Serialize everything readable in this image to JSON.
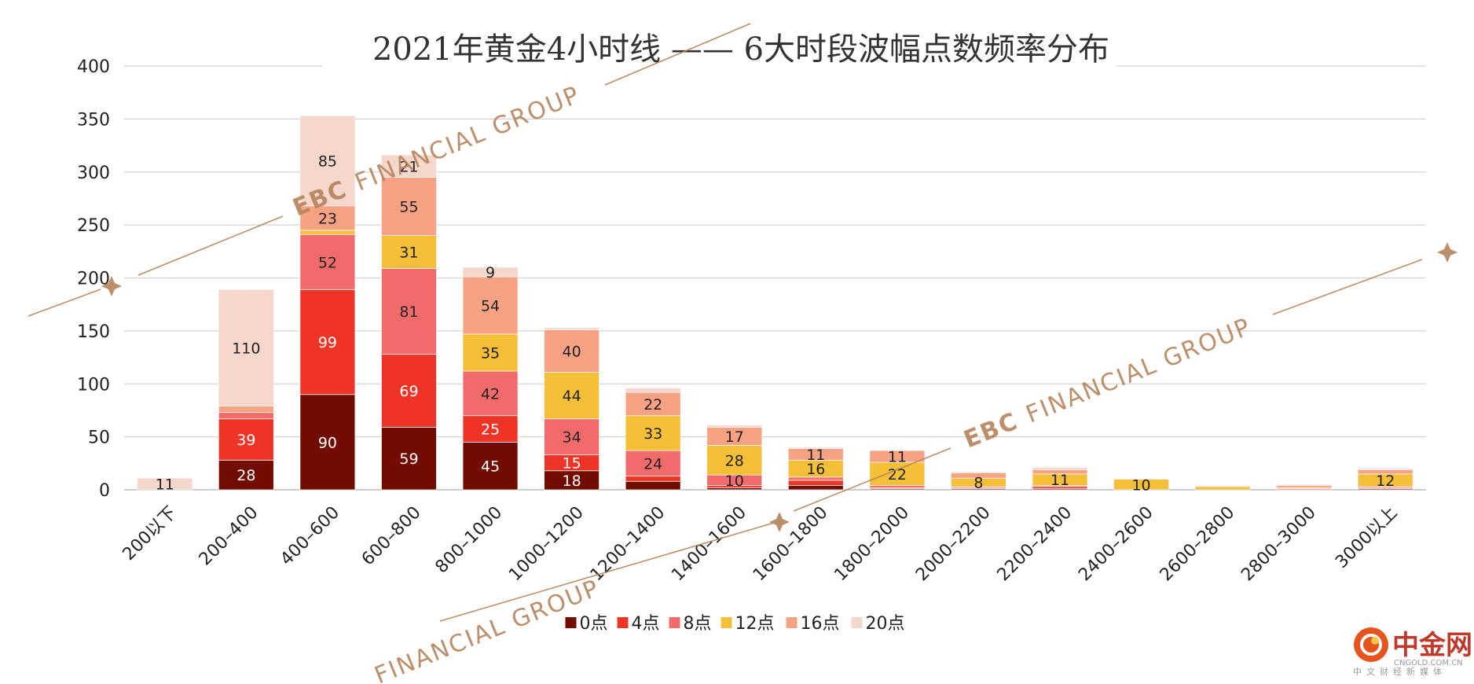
{
  "chart_data": {
    "type": "bar",
    "stacked": true,
    "title": "2021年黄金4小时线 —— 6大时段波幅点数频率分布",
    "xlabel": "",
    "ylabel": "",
    "ylim": [
      0,
      400
    ],
    "yticks": [
      0,
      50,
      100,
      150,
      200,
      250,
      300,
      350,
      400
    ],
    "grid": true,
    "legend_position": "bottom-center",
    "categories": [
      "200以下",
      "200–400",
      "400–600",
      "600–800",
      "800–1000",
      "1000–1200",
      "1200–1400",
      "1400–1600",
      "1600–1800",
      "1800–2000",
      "2000–2200",
      "2200–2400",
      "2400–2600",
      "2600–2800",
      "2800–3000",
      "3000以上"
    ],
    "series": [
      {
        "name": "0点",
        "color": "#720b00",
        "values": [
          0,
          28,
          90,
          59,
          45,
          18,
          8,
          2,
          4,
          1,
          1,
          1,
          0,
          0,
          0,
          1
        ]
      },
      {
        "name": "4点",
        "color": "#ee3427",
        "values": [
          0,
          39,
          99,
          69,
          25,
          15,
          5,
          2,
          5,
          1,
          1,
          2,
          0,
          0,
          0,
          1
        ]
      },
      {
        "name": "8点",
        "color": "#f26b6b",
        "values": [
          0,
          6,
          52,
          81,
          42,
          34,
          24,
          10,
          3,
          2,
          1,
          1,
          0,
          0,
          1,
          1
        ]
      },
      {
        "name": "12点",
        "color": "#f5c037",
        "values": [
          0,
          0,
          4,
          31,
          35,
          44,
          33,
          28,
          16,
          22,
          8,
          11,
          10,
          3,
          1,
          12
        ]
      },
      {
        "name": "16点",
        "color": "#f6a283",
        "values": [
          0,
          6,
          23,
          55,
          54,
          40,
          22,
          17,
          11,
          11,
          5,
          4,
          0,
          0,
          2,
          4
        ]
      },
      {
        "name": "20点",
        "color": "#f5d7cc",
        "values": [
          11,
          110,
          85,
          21,
          9,
          2,
          4,
          2,
          1,
          0,
          1,
          2,
          0,
          1,
          1,
          1
        ]
      }
    ],
    "shown_labels": [
      [
        null,
        28,
        90,
        59,
        45,
        18,
        null,
        null,
        null,
        null,
        null,
        null,
        null,
        null,
        null,
        null
      ],
      [
        null,
        39,
        99,
        69,
        25,
        15,
        null,
        null,
        null,
        null,
        null,
        null,
        null,
        null,
        null,
        null
      ],
      [
        null,
        null,
        52,
        81,
        42,
        34,
        24,
        10,
        null,
        null,
        null,
        null,
        null,
        null,
        null,
        null
      ],
      [
        null,
        null,
        null,
        31,
        35,
        44,
        33,
        28,
        16,
        22,
        8,
        11,
        10,
        null,
        null,
        12
      ],
      [
        null,
        null,
        23,
        55,
        54,
        40,
        22,
        17,
        11,
        11,
        null,
        null,
        null,
        null,
        null,
        null
      ],
      [
        11,
        110,
        85,
        21,
        9,
        null,
        null,
        null,
        null,
        null,
        null,
        null,
        null,
        null,
        null,
        null
      ]
    ]
  },
  "watermark": {
    "brand": "EBC",
    "text": "FINANCIAL GROUP"
  },
  "logo": {
    "name": "中金网",
    "domain": "CNGOLD.COM.CN",
    "tagline": "中文财经新媒体"
  }
}
